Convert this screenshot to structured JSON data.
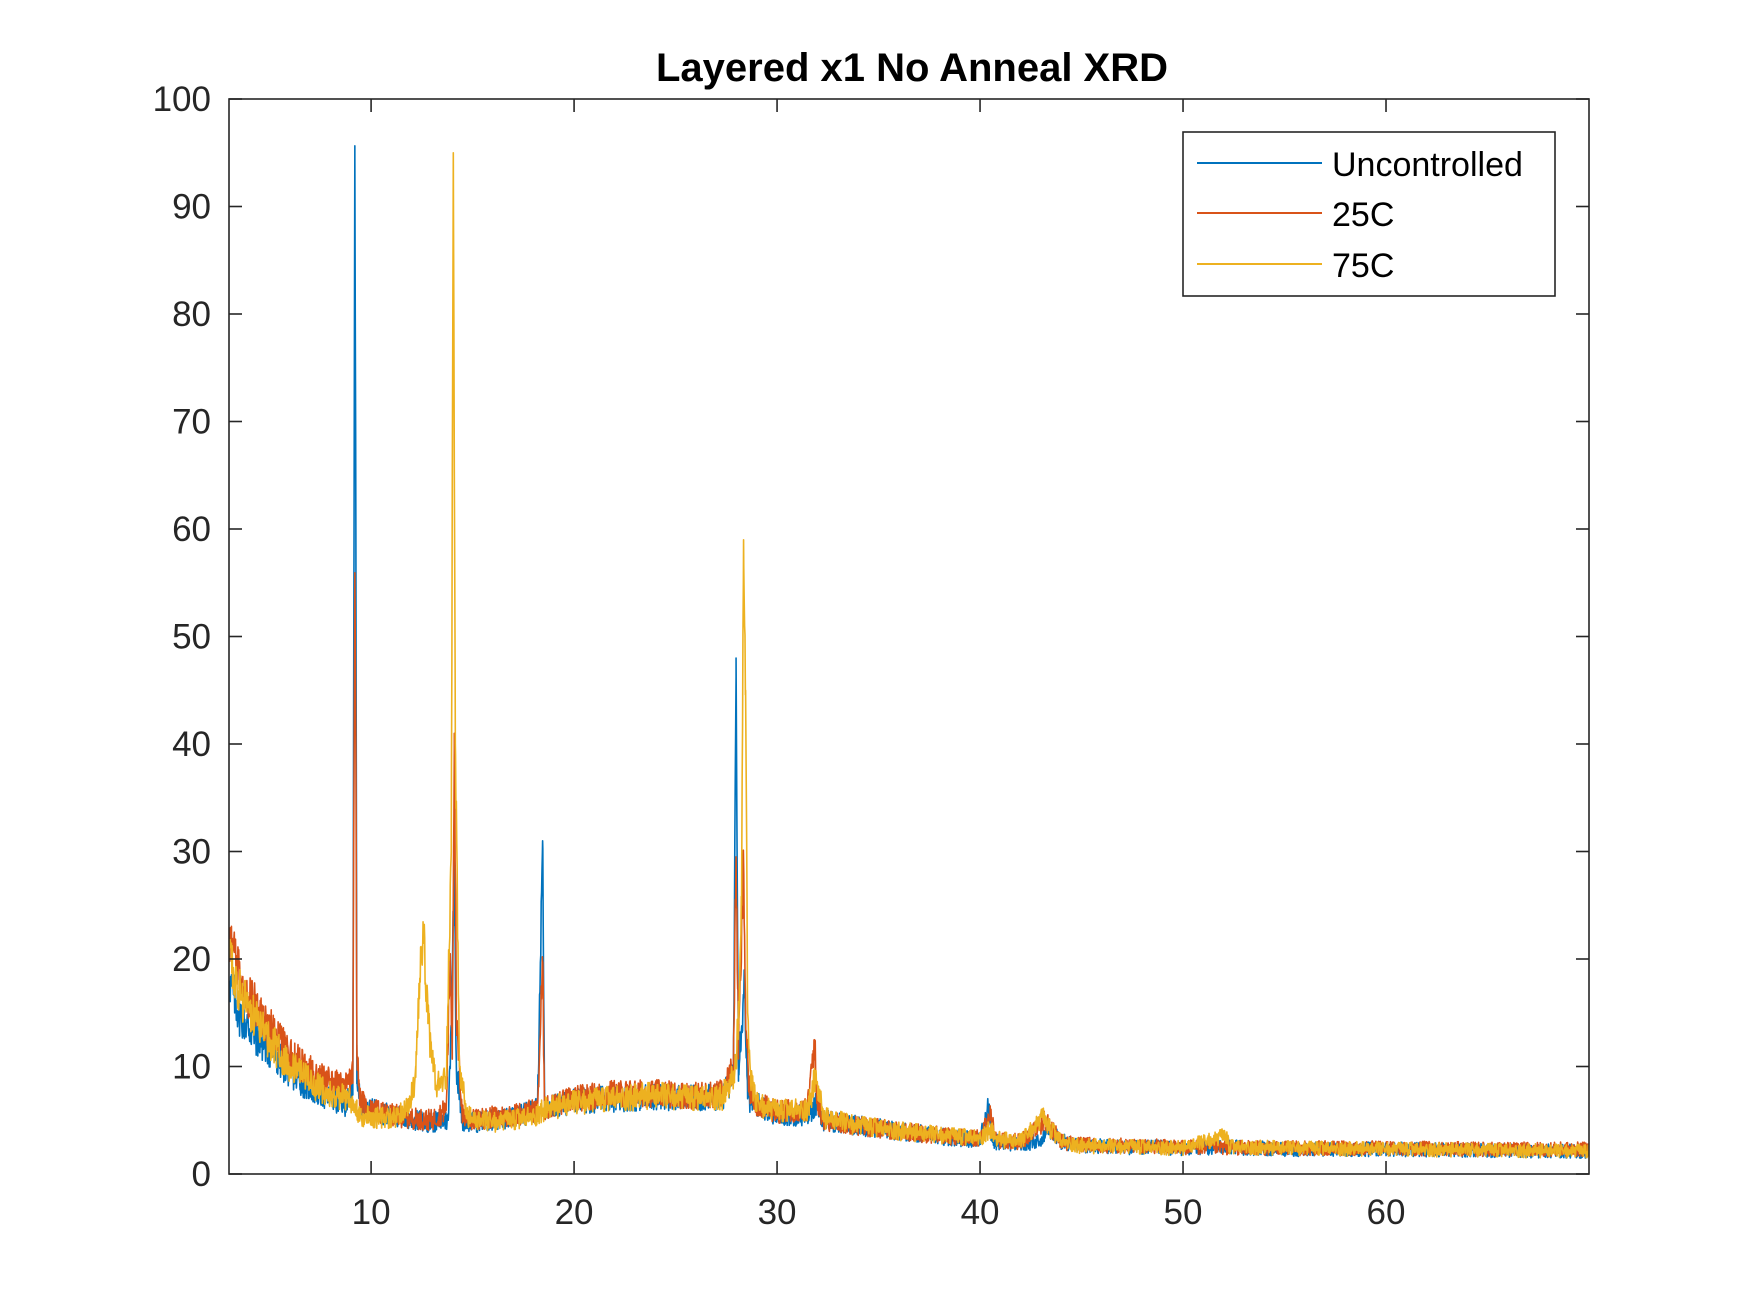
{
  "chart_data": {
    "type": "line",
    "title": "Layered x1 No Anneal XRD",
    "xlabel": "",
    "ylabel": "",
    "xlim": [
      3,
      70
    ],
    "ylim": [
      0,
      100
    ],
    "xticks": [
      10,
      20,
      30,
      40,
      50,
      60
    ],
    "yticks": [
      0,
      10,
      20,
      30,
      40,
      50,
      60,
      70,
      80,
      90,
      100
    ],
    "grid": false,
    "legend_position": "top-right",
    "series": [
      {
        "name": "Uncontrolled",
        "color": "#0072BD",
        "x": [
          3.0,
          3.5,
          4.0,
          5.0,
          6.0,
          7.0,
          8.0,
          8.8,
          9.1,
          9.2,
          9.25,
          9.3,
          9.45,
          9.8,
          11.0,
          12.0,
          13.0,
          13.8,
          14.0,
          14.1,
          14.2,
          14.5,
          15.0,
          16.0,
          17.0,
          18.2,
          18.45,
          18.55,
          18.8,
          19.5,
          20.0,
          22.0,
          24.0,
          26.0,
          27.3,
          27.85,
          27.98,
          28.1,
          28.4,
          28.55,
          29.0,
          30.0,
          31.5,
          31.9,
          32.3,
          34.0,
          36.0,
          38.0,
          40.0,
          40.45,
          40.55,
          40.8,
          42.0,
          43.0,
          43.3,
          44.0,
          45.0,
          50.0,
          52.0,
          55.0,
          60.0,
          65.0,
          70.0
        ],
        "y": [
          18,
          15,
          13.5,
          11.5,
          9.5,
          8,
          7,
          6.5,
          8,
          94.5,
          60,
          10,
          6.5,
          6,
          5.5,
          5,
          4.8,
          5,
          18,
          30,
          10,
          5,
          4.8,
          5,
          5.2,
          6,
          31,
          6,
          6.2,
          6.5,
          6.8,
          7,
          7.2,
          7,
          7.2,
          9,
          48,
          10,
          18,
          7,
          6.5,
          5.5,
          5.5,
          6.5,
          5,
          4.5,
          4,
          3.5,
          3.2,
          6.5,
          3.3,
          3,
          2.8,
          3,
          4.5,
          3,
          2.6,
          2.4,
          2.5,
          2.3,
          2.3,
          2.2,
          2.1
        ]
      },
      {
        "name": "25C",
        "color": "#D95319",
        "x": [
          3.0,
          3.5,
          4.0,
          5.0,
          6.0,
          7.0,
          8.0,
          8.8,
          9.1,
          9.2,
          9.25,
          9.3,
          9.45,
          9.8,
          11.0,
          12.0,
          13.0,
          13.7,
          13.9,
          14.0,
          14.1,
          14.2,
          14.5,
          15.0,
          16.0,
          17.0,
          18.2,
          18.45,
          18.55,
          18.8,
          20.0,
          22.0,
          24.0,
          26.0,
          27.3,
          27.85,
          27.98,
          28.1,
          28.2,
          28.35,
          28.45,
          28.6,
          29.0,
          30.0,
          31.5,
          31.85,
          31.95,
          32.3,
          34.0,
          36.0,
          38.0,
          40.0,
          40.5,
          40.8,
          42.0,
          43.2,
          44.0,
          45.0,
          50.0,
          55.0,
          60.0,
          65.0,
          70.0
        ],
        "y": [
          22,
          19,
          16.5,
          13.5,
          11,
          9.5,
          8.5,
          8,
          9.5,
          55,
          40,
          12,
          7,
          6,
          5.5,
          5.2,
          5,
          6,
          20.5,
          12,
          41,
          14,
          5.5,
          5,
          5.3,
          5.5,
          6,
          19.5,
          6,
          6.3,
          7,
          7.5,
          7.5,
          7.3,
          7.5,
          10,
          29.5,
          12,
          18,
          29,
          15,
          8,
          6.5,
          5.8,
          6,
          12.5,
          7,
          5,
          4.5,
          4,
          3.6,
          3.3,
          5.5,
          3.2,
          3,
          5,
          3,
          2.7,
          2.5,
          2.4,
          2.4,
          2.3,
          2.3
        ]
      },
      {
        "name": "75C",
        "color": "#EDB120",
        "x": [
          3.0,
          3.5,
          4.0,
          5.0,
          6.0,
          7.0,
          8.0,
          8.8,
          9.2,
          9.3,
          9.5,
          10.0,
          11.0,
          11.8,
          12.2,
          12.45,
          12.6,
          12.8,
          13.2,
          13.7,
          13.95,
          14.05,
          14.15,
          14.35,
          14.7,
          15.0,
          16.0,
          17.0,
          18.0,
          18.5,
          19.0,
          20.0,
          22.0,
          24.0,
          26.0,
          27.3,
          27.9,
          28.1,
          28.25,
          28.35,
          28.45,
          28.55,
          28.7,
          29.0,
          30.0,
          31.5,
          31.9,
          32.3,
          34.0,
          36.0,
          38.0,
          40.0,
          40.5,
          40.8,
          42.0,
          43.1,
          43.3,
          44.0,
          45.0,
          50.0,
          52.1,
          52.3,
          55.0,
          60.0,
          65.0,
          70.0
        ],
        "y": [
          20,
          17,
          15,
          12.5,
          10,
          8.5,
          7.5,
          7,
          6.5,
          6,
          5.5,
          5.3,
          5.2,
          6,
          9,
          20,
          22,
          14,
          8,
          9,
          30,
          95,
          40,
          10,
          5.5,
          5,
          4.8,
          5,
          5.3,
          6,
          6.2,
          6.6,
          7,
          7.3,
          7,
          7.2,
          9,
          14,
          25,
          59,
          45,
          15,
          8.5,
          6.5,
          5.8,
          6,
          9,
          5.2,
          4.5,
          4,
          3.6,
          3.3,
          4.2,
          3.2,
          3,
          5.2,
          4.5,
          3,
          2.6,
          2.4,
          3.5,
          2.5,
          2.4,
          2.3,
          2.2,
          2.1
        ]
      }
    ]
  }
}
